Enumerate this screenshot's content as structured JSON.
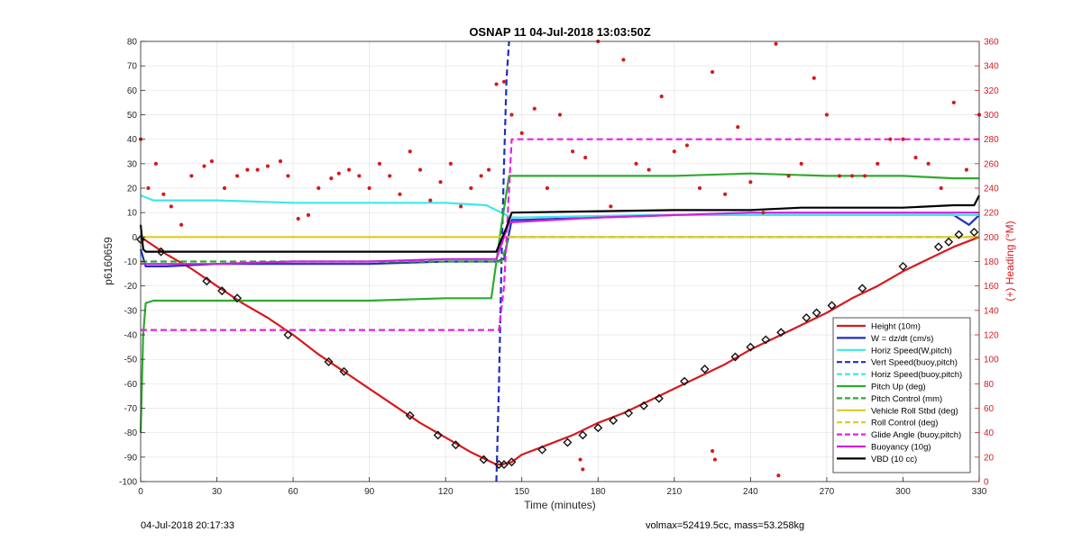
{
  "title": "OSNAP 11 04-Jul-2018 13:03:50Z",
  "footer_left": "04-Jul-2018 20:17:33",
  "footer_right": "volmax=52419.5cc, mass=53.258kg",
  "chart_data": {
    "type": "line",
    "title": "OSNAP 11 04-Jul-2018 13:03:50Z",
    "xlabel": "Time (minutes)",
    "ylabel": "p6160659",
    "y2label": "(+) Heading (°M)",
    "xlim": [
      0,
      330
    ],
    "ylim": [
      -100,
      80
    ],
    "y2lim": [
      0,
      360
    ],
    "xticks": [
      "0",
      "30",
      "60",
      "90",
      "120",
      "150",
      "180",
      "210",
      "240",
      "270",
      "300",
      "330"
    ],
    "yticks": [
      "-100",
      "-90",
      "-80",
      "-70",
      "-60",
      "-50",
      "-40",
      "-30",
      "-20",
      "-10",
      "0",
      "10",
      "20",
      "30",
      "40",
      "50",
      "60",
      "70",
      "80"
    ],
    "y2ticks": [
      "0",
      "20",
      "40",
      "60",
      "80",
      "100",
      "120",
      "140",
      "160",
      "180",
      "200",
      "220",
      "240",
      "260",
      "280",
      "300",
      "320",
      "340",
      "360"
    ],
    "grid": true,
    "legend_position": "bottom-right",
    "legend": [
      {
        "label": "Height (10m)",
        "color": "#d7191c",
        "style": "solid"
      },
      {
        "label": "W = dz/dt (cm/s)",
        "color": "#1f2fbf",
        "style": "solid"
      },
      {
        "label": "Horiz Speed(W,pitch)",
        "color": "#3ee8e8",
        "style": "solid"
      },
      {
        "label": "Vert Speed(buoy,pitch)",
        "color": "#1f2fbf",
        "style": "dashed"
      },
      {
        "label": "Horiz Speed(buoy,pitch)",
        "color": "#3ee8e8",
        "style": "dashed"
      },
      {
        "label": "Pitch Up (deg)",
        "color": "#2eaa2e",
        "style": "solid"
      },
      {
        "label": "Pitch Control (mm)",
        "color": "#2eaa2e",
        "style": "dashed"
      },
      {
        "label": "Vehicle Roll Stbd (deg)",
        "color": "#e3c622",
        "style": "solid"
      },
      {
        "label": "Roll Control (deg)",
        "color": "#e3c622",
        "style": "dashed"
      },
      {
        "label": "Glide Angle (buoy,pitch)",
        "color": "#e91ee9",
        "style": "dashed"
      },
      {
        "label": "Buoyancy (10g)",
        "color": "#d020e0",
        "style": "solid"
      },
      {
        "label": "VBD (10 cc)",
        "color": "#000000",
        "style": "solid"
      }
    ],
    "series": [
      {
        "name": "Height (10m)",
        "x": [
          0,
          10,
          20,
          30,
          40,
          50,
          60,
          70,
          80,
          90,
          100,
          110,
          120,
          130,
          136,
          140,
          142,
          146,
          150,
          160,
          170,
          180,
          190,
          200,
          210,
          220,
          230,
          240,
          250,
          260,
          270,
          280,
          290,
          300,
          310,
          320,
          330
        ],
        "y": [
          0,
          -7,
          -13,
          -20,
          -27,
          -33,
          -40,
          -48,
          -55,
          -62,
          -69,
          -76,
          -82,
          -88,
          -91,
          -93,
          -93,
          -92,
          -89,
          -85,
          -81,
          -76,
          -72,
          -67,
          -62,
          -57,
          -52,
          -46,
          -41,
          -36,
          -31,
          -25,
          -20,
          -14,
          -9,
          -4,
          0
        ]
      },
      {
        "name": "W = dz/dt (cm/s)",
        "x": [
          0,
          2,
          5,
          10,
          30,
          60,
          90,
          120,
          140,
          143,
          146,
          150,
          180,
          210,
          240,
          270,
          300,
          320,
          326,
          330
        ],
        "y": [
          -5,
          -12,
          -12,
          -12,
          -11,
          -11,
          -11,
          -10,
          -10,
          -9,
          7,
          7,
          8,
          9,
          9,
          9,
          9,
          9,
          5,
          9
        ]
      },
      {
        "name": "Horiz Speed(W,pitch)",
        "x": [
          0,
          5,
          30,
          60,
          100,
          120,
          136,
          138,
          142,
          146,
          150,
          200,
          240,
          300,
          330
        ],
        "y": [
          17,
          15,
          15,
          14,
          14,
          14,
          13,
          12,
          10,
          8,
          8,
          9,
          9,
          9,
          9
        ]
      },
      {
        "name": "Vert Speed(buoy,pitch)",
        "x": [
          140,
          141,
          142,
          143,
          144,
          145
        ],
        "y": [
          -100,
          -60,
          -10,
          30,
          65,
          80
        ]
      },
      {
        "name": "Pitch Up (deg)",
        "x": [
          0,
          1,
          2,
          5,
          30,
          60,
          90,
          120,
          138,
          142,
          145,
          150,
          180,
          210,
          240,
          270,
          300,
          320,
          330
        ],
        "y": [
          -80,
          -40,
          -27,
          -26,
          -26,
          -26,
          -26,
          -25,
          -25,
          5,
          25,
          25,
          25,
          25,
          26,
          25,
          25,
          24,
          24
        ]
      },
      {
        "name": "Pitch Control (mm)",
        "x": [
          0,
          142,
          145,
          330
        ],
        "y": [
          -10,
          -10,
          0,
          0
        ]
      },
      {
        "name": "Vehicle Roll Stbd (deg)",
        "x": [
          0,
          30,
          60,
          90,
          120,
          140,
          143,
          150,
          180,
          210,
          240,
          270,
          300,
          330
        ],
        "y": [
          0,
          0,
          0,
          0,
          0,
          0,
          0,
          0,
          0,
          0,
          0,
          0,
          0,
          0
        ]
      },
      {
        "name": "Glide Angle (buoy,pitch)",
        "x": [
          0,
          30,
          60,
          90,
          120,
          141,
          143,
          146,
          180,
          210,
          240,
          270,
          300,
          330
        ],
        "y": [
          -38,
          -38,
          -38,
          -38,
          -38,
          -38,
          -20,
          40,
          40,
          40,
          40,
          40,
          40,
          40
        ]
      },
      {
        "name": "Buoyancy (10g)",
        "x": [
          0,
          30,
          60,
          90,
          120,
          140,
          145,
          180,
          210,
          240,
          270,
          300,
          330
        ],
        "y": [
          -11,
          -11,
          -10,
          -10,
          -9,
          -9,
          6,
          8,
          9,
          10,
          10,
          10,
          10
        ]
      },
      {
        "name": "VBD (10 cc)",
        "x": [
          0,
          1,
          2,
          140,
          144,
          146,
          210,
          240,
          260,
          280,
          300,
          320,
          328,
          330
        ],
        "y": [
          5,
          -5,
          -6,
          -6,
          4,
          10,
          11,
          11,
          12,
          12,
          12,
          13,
          13,
          17
        ]
      }
    ],
    "heading_points_note": "",
    "heading": {
      "x": [
        0,
        3,
        6,
        9,
        12,
        16,
        20,
        25,
        28,
        33,
        38,
        42,
        46,
        50,
        55,
        58,
        62,
        66,
        70,
        75,
        78,
        82,
        86,
        90,
        94,
        98,
        102,
        106,
        110,
        114,
        118,
        122,
        126,
        130,
        134,
        137,
        140,
        143,
        146,
        150,
        155,
        160,
        165,
        170,
        175,
        180,
        185,
        190,
        195,
        200,
        205,
        210,
        215,
        220,
        225,
        230,
        235,
        240,
        245,
        250,
        255,
        260,
        265,
        270,
        275,
        280,
        285,
        290,
        295,
        300,
        305,
        310,
        315,
        320,
        325,
        330
      ],
      "y": [
        280,
        240,
        260,
        235,
        225,
        210,
        250,
        258,
        262,
        240,
        250,
        255,
        255,
        258,
        262,
        250,
        215,
        218,
        240,
        248,
        252,
        255,
        250,
        240,
        260,
        250,
        235,
        270,
        255,
        230,
        245,
        260,
        225,
        240,
        250,
        255,
        325,
        327,
        300,
        285,
        305,
        240,
        300,
        270,
        265,
        360,
        225,
        345,
        260,
        255,
        315,
        270,
        275,
        240,
        335,
        235,
        290,
        245,
        220,
        358,
        250,
        260,
        330,
        300,
        250,
        250,
        250,
        260,
        280,
        280,
        265,
        260,
        240,
        310,
        255,
        300
      ]
    },
    "heading_low_x": [
      173,
      174,
      225,
      226,
      251
    ],
    "heading_low_y": [
      18,
      10,
      25,
      18,
      5
    ],
    "height_markers_x": [
      0,
      8,
      26,
      32,
      38,
      58,
      74,
      80,
      106,
      117,
      124,
      135,
      141,
      143,
      146,
      158,
      168,
      174,
      180,
      186,
      192,
      198,
      204,
      214,
      222,
      234,
      240,
      246,
      252,
      262,
      266,
      272,
      284,
      300,
      314,
      318,
      322,
      328
    ],
    "height_markers_y": [
      -1,
      -6,
      -18,
      -22,
      -25,
      -40,
      -51,
      -55,
      -73,
      -81,
      -85,
      -91,
      -93,
      -93,
      -92,
      -87,
      -84,
      -81,
      -78,
      -75,
      -72,
      -69,
      -66,
      -59,
      -54,
      -49,
      -45,
      -42,
      -39,
      -33,
      -31,
      -28,
      -21,
      -12,
      -4,
      -2,
      1,
      2
    ]
  }
}
